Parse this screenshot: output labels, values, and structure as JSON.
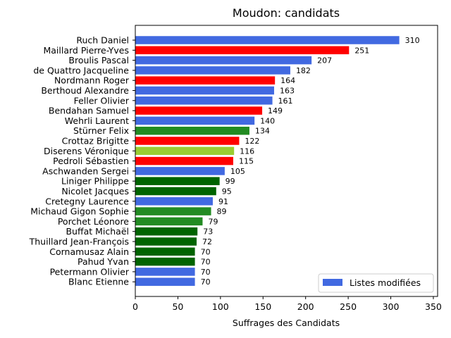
{
  "chart_data": {
    "type": "bar",
    "orientation": "horizontal",
    "title": "Moudon: candidats",
    "xlabel": "Suffrages des Candidats",
    "ylabel": "",
    "xlim": [
      0,
      355
    ],
    "xticks": [
      0,
      50,
      100,
      150,
      200,
      250,
      300,
      350
    ],
    "grid": false,
    "legend": {
      "position": "lower right",
      "entries": [
        {
          "label": "Listes modifiées",
          "color": "#4169e1"
        }
      ]
    },
    "colors": {
      "blue": "#4169e1",
      "red": "#ff0000",
      "forestgreen": "#228b22",
      "yellowgreen": "#9acd32",
      "darkgreen": "#006400"
    },
    "bars": [
      {
        "name": "Ruch Daniel",
        "value": 310,
        "color": "#4169e1"
      },
      {
        "name": "Maillard Pierre-Yves",
        "value": 251,
        "color": "#ff0000"
      },
      {
        "name": "Broulis Pascal",
        "value": 207,
        "color": "#4169e1"
      },
      {
        "name": "de Quattro Jacqueline",
        "value": 182,
        "color": "#4169e1"
      },
      {
        "name": "Nordmann Roger",
        "value": 164,
        "color": "#ff0000"
      },
      {
        "name": "Berthoud Alexandre",
        "value": 163,
        "color": "#4169e1"
      },
      {
        "name": "Feller Olivier",
        "value": 161,
        "color": "#4169e1"
      },
      {
        "name": "Bendahan Samuel",
        "value": 149,
        "color": "#ff0000"
      },
      {
        "name": "Wehrli Laurent",
        "value": 140,
        "color": "#4169e1"
      },
      {
        "name": "Stürner Felix",
        "value": 134,
        "color": "#228b22"
      },
      {
        "name": "Crottaz Brigitte",
        "value": 122,
        "color": "#ff0000"
      },
      {
        "name": "Diserens Véronique",
        "value": 116,
        "color": "#9acd32"
      },
      {
        "name": "Pedroli Sébastien",
        "value": 115,
        "color": "#ff0000"
      },
      {
        "name": "Aschwanden Sergei",
        "value": 105,
        "color": "#4169e1"
      },
      {
        "name": "Liniger Philippe",
        "value": 99,
        "color": "#006400"
      },
      {
        "name": "Nicolet Jacques",
        "value": 95,
        "color": "#006400"
      },
      {
        "name": "Cretegny Laurence",
        "value": 91,
        "color": "#4169e1"
      },
      {
        "name": "Michaud Gigon Sophie",
        "value": 89,
        "color": "#228b22"
      },
      {
        "name": "Porchet Léonore",
        "value": 79,
        "color": "#228b22"
      },
      {
        "name": "Buffat Michaël",
        "value": 73,
        "color": "#006400"
      },
      {
        "name": "Thuillard Jean-François",
        "value": 72,
        "color": "#006400"
      },
      {
        "name": "Cornamusaz Alain",
        "value": 70,
        "color": "#006400"
      },
      {
        "name": "Pahud Yvan",
        "value": 70,
        "color": "#006400"
      },
      {
        "name": "Petermann Olivier",
        "value": 70,
        "color": "#4169e1"
      },
      {
        "name": "Blanc Etienne",
        "value": 70,
        "color": "#4169e1"
      }
    ]
  }
}
